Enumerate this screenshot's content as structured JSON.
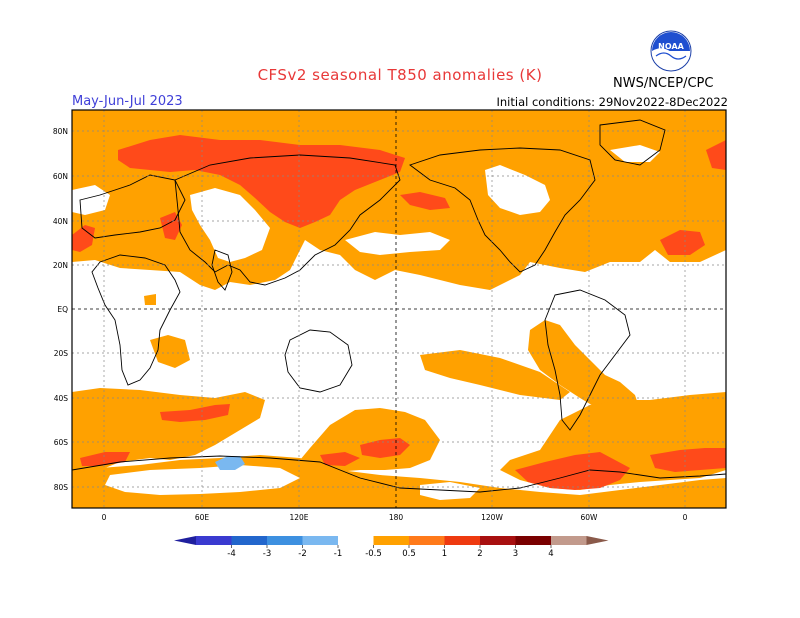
{
  "header": {
    "title": "CFSv2 seasonal T850 anomalies (K)",
    "season": "May-Jun-Jul 2023",
    "initial_conditions": "Initial conditions: 29Nov2022-8Dec2022",
    "agency": "NWS/NCEP/CPC",
    "logo_text": "NOAA"
  },
  "map": {
    "lat_labels": [
      "80N",
      "60N",
      "40N",
      "20N",
      "EQ",
      "20S",
      "40S",
      "60S",
      "80S"
    ],
    "lon_labels": [
      "0",
      "60E",
      "120E",
      "180",
      "120W",
      "60W",
      "0"
    ]
  },
  "colorbar": {
    "colors": [
      "#1f1f9e",
      "#3a3ad0",
      "#2266cc",
      "#3d90e0",
      "#7ab8f0",
      "#ffffff",
      "#ffa100",
      "#ff7a1a",
      "#ee3a10",
      "#a81010",
      "#7a0000",
      "#c29a8c",
      "#8a5a4a"
    ],
    "tick_labels": [
      "-4",
      "-3",
      "-2",
      "-1",
      "-0.5",
      "0.5",
      "1",
      "2",
      "3",
      "4"
    ]
  },
  "palette": {
    "orange": "#ffa100",
    "red": "#ff4a1a",
    "blue": "#7ab8f0",
    "white": "#ffffff",
    "title_color": "#e83838",
    "season_color": "#4040d8"
  }
}
